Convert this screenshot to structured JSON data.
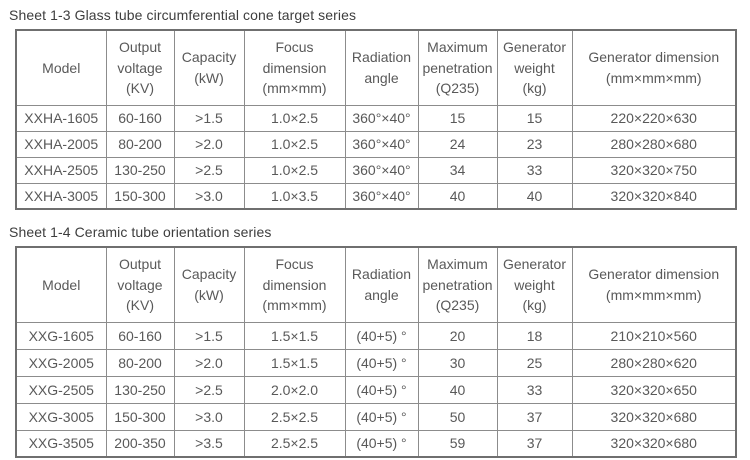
{
  "colors": {
    "background": "#ffffff",
    "table_border_outer": "#6f6f6f",
    "table_border_inner": "#8c8c8c",
    "cell_text": "#595959",
    "title_text": "#3d3d3d"
  },
  "table1": {
    "title": "Sheet 1-3 Glass tube circumferential cone target series",
    "headers": {
      "model": "Model",
      "voltage": "Output\nvoltage\n(KV)",
      "capacity": "Capacity\n(kW)",
      "focus": "Focus\ndimension\n(mm×mm)",
      "radiation": "Radiation\nangle",
      "penetration": "Maximum\npenetration\n(Q235)",
      "weight": "Generator\nweight\n(kg)",
      "dimension": "Generator dimension\n(mm×mm×mm)"
    },
    "rows": [
      [
        "XXHA-1605",
        "60-160",
        ">1.5",
        "1.0×2.5",
        "360°×40°",
        "15",
        "15",
        "220×220×630"
      ],
      [
        "XXHA-2005",
        "80-200",
        ">2.0",
        "1.0×2.5",
        "360°×40°",
        "24",
        "23",
        "280×280×680"
      ],
      [
        "XXHA-2505",
        "130-250",
        ">2.5",
        "1.0×2.5",
        "360°×40°",
        "34",
        "33",
        "320×320×750"
      ],
      [
        "XXHA-3005",
        "150-300",
        ">3.0",
        "1.0×3.5",
        "360°×40°",
        "40",
        "40",
        "320×320×840"
      ]
    ]
  },
  "table2": {
    "title": "Sheet 1-4 Ceramic tube orientation series",
    "headers": {
      "model": "Model",
      "voltage": "Output\nvoltage\n(KV)",
      "capacity": "Capacity\n(kW)",
      "focus": "Focus\ndimension\n(mm×mm)",
      "radiation": "Radiation\nangle",
      "penetration": "Maximum\npenetration\n(Q235)",
      "weight": "Generator\nweight\n(kg)",
      "dimension": "Generator dimension\n(mm×mm×mm)"
    },
    "rows": [
      [
        "XXG-1605",
        "60-160",
        ">1.5",
        "1.5×1.5",
        "(40+5) °",
        "20",
        "18",
        "210×210×560"
      ],
      [
        "XXG-2005",
        "80-200",
        ">2.0",
        "1.5×1.5",
        "(40+5) °",
        "30",
        "25",
        "280×280×620"
      ],
      [
        "XXG-2505",
        "130-250",
        ">2.5",
        "2.0×2.0",
        "(40+5) °",
        "40",
        "33",
        "320×320×650"
      ],
      [
        "XXG-3005",
        "150-300",
        ">3.0",
        "2.5×2.5",
        "(40+5) °",
        "50",
        "37",
        "320×320×680"
      ],
      [
        "XXG-3505",
        "200-350",
        ">3.5",
        "2.5×2.5",
        "(40+5) °",
        "59",
        "37",
        "320×320×680"
      ]
    ]
  }
}
